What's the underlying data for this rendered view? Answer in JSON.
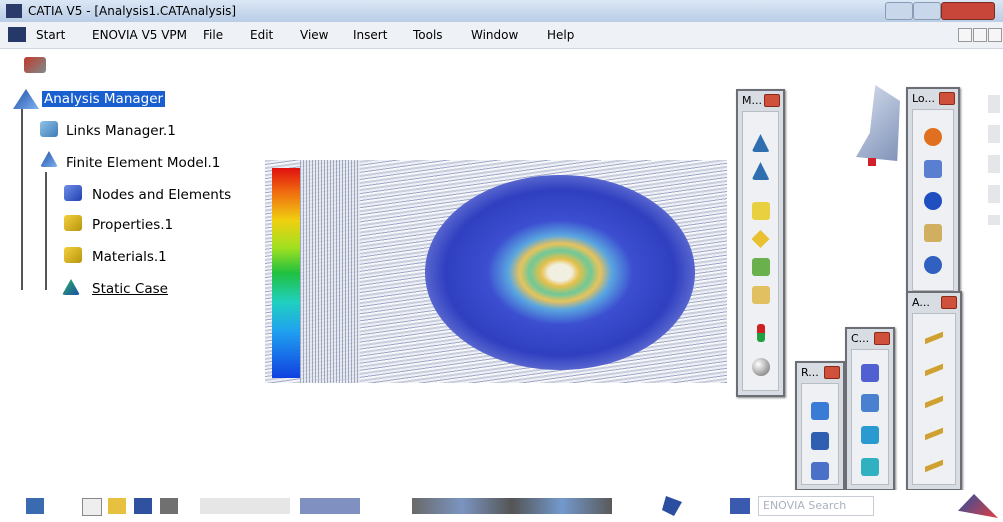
{
  "window": {
    "title": "CATIA V5 - [Analysis1.CATAnalysis]"
  },
  "menu": [
    "Start",
    "ENOVIA V5 VPM",
    "File",
    "Edit",
    "View",
    "Insert",
    "Tools",
    "Window",
    "Help"
  ],
  "tree": {
    "nodes": [
      {
        "label": "Analysis Manager"
      },
      {
        "label": "Links Manager.1"
      },
      {
        "label": "Finite Element Model.1"
      },
      {
        "label": "Nodes and Elements"
      },
      {
        "label": "Properties.1"
      },
      {
        "label": "Materials.1"
      },
      {
        "label": "Static Case"
      }
    ]
  },
  "toolbars": [
    "M...",
    "Lo...",
    "R...",
    "C...",
    "A..."
  ],
  "search": {
    "placeholder": "ENOVIA Search"
  }
}
